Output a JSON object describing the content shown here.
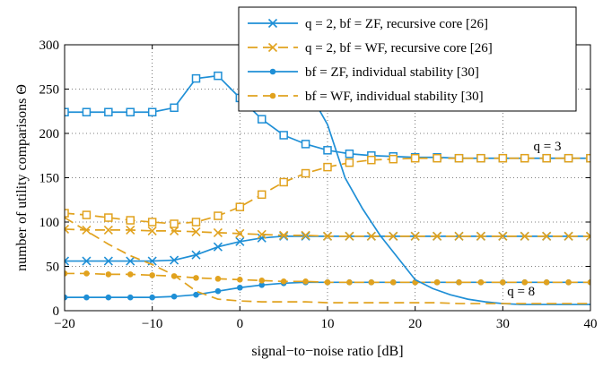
{
  "chart_data": {
    "type": "line",
    "xlabel": "signal−to−noise ratio [dB]",
    "ylabel": "number of utility comparisons Θ",
    "xlim": [
      -20,
      40
    ],
    "ylim": [
      0,
      300
    ],
    "xticks": [
      -20,
      -10,
      0,
      10,
      20,
      30,
      40
    ],
    "yticks": [
      0,
      50,
      100,
      150,
      200,
      250,
      300
    ],
    "grid": true,
    "legend_position": "top-right",
    "colors": {
      "blue": "#1f8fd6",
      "orange": "#e1a21e"
    },
    "annotations": [
      {
        "text": "q = 3",
        "x": 33.5,
        "y": 181
      },
      {
        "text": "q = 8",
        "x": 30.5,
        "y": 17
      }
    ],
    "series": [
      {
        "name": "q = 2, bf = ZF, recursive core [26]",
        "color": "blue",
        "dash": "solid",
        "marker": "x",
        "x": [
          -20,
          -17.5,
          -15,
          -12.5,
          -10,
          -7.5,
          -5,
          -2.5,
          0,
          2.5,
          5,
          7.5,
          10,
          12.5,
          15,
          17.5,
          20,
          22.5,
          25,
          27.5,
          30,
          32.5,
          35,
          37.5,
          40
        ],
        "y": [
          56,
          56,
          56,
          56,
          56,
          57,
          63,
          72,
          78,
          82,
          84,
          84,
          84,
          84,
          84,
          84,
          84,
          84,
          84,
          84,
          84,
          84,
          84,
          84,
          84
        ]
      },
      {
        "name": "q = 2, bf = WF, recursive core [26]",
        "color": "orange",
        "dash": "dashed",
        "marker": "x",
        "x": [
          -20,
          -17.5,
          -15,
          -12.5,
          -10,
          -7.5,
          -5,
          -2.5,
          0,
          2.5,
          5,
          7.5,
          10,
          12.5,
          15,
          17.5,
          20,
          22.5,
          25,
          27.5,
          30,
          32.5,
          35,
          37.5,
          40
        ],
        "y": [
          92,
          91,
          91,
          91,
          90,
          90,
          89,
          88,
          87,
          86,
          85,
          85,
          84,
          84,
          84,
          84,
          84,
          84,
          84,
          84,
          84,
          84,
          84,
          84,
          84
        ]
      },
      {
        "name": "bf = ZF, individual stability [30]",
        "color": "blue",
        "dash": "solid",
        "marker": "dot",
        "x": [
          -20,
          -17.5,
          -15,
          -12.5,
          -10,
          -7.5,
          -5,
          -2.5,
          0,
          2.5,
          5,
          7.5,
          10,
          12.5,
          15,
          17.5,
          20,
          22.5,
          25,
          27.5,
          30,
          32.5,
          35,
          37.5,
          40
        ],
        "y": [
          15,
          15,
          15,
          15,
          15,
          16,
          18,
          22,
          26,
          29,
          31,
          32,
          32,
          32,
          32,
          32,
          32,
          32,
          32,
          32,
          32,
          32,
          32,
          32,
          32
        ]
      },
      {
        "name": "bf = WF, individual stability [30]",
        "color": "orange",
        "dash": "dashed",
        "marker": "dot",
        "x": [
          -20,
          -17.5,
          -15,
          -12.5,
          -10,
          -7.5,
          -5,
          -2.5,
          0,
          2.5,
          5,
          7.5,
          10,
          12.5,
          15,
          17.5,
          20,
          22.5,
          25,
          27.5,
          30,
          32.5,
          35,
          37.5,
          40
        ],
        "y": [
          42,
          42,
          41,
          41,
          40,
          39,
          37,
          36,
          35,
          34,
          33,
          33,
          32,
          32,
          32,
          32,
          32,
          32,
          32,
          32,
          32,
          32,
          32,
          32,
          32
        ]
      },
      {
        "color": "blue",
        "dash": "solid",
        "marker": "square",
        "x": [
          -20,
          -17.5,
          -15,
          -12.5,
          -10,
          -7.5,
          -5,
          -2.5,
          0,
          2.5,
          5,
          7.5,
          10,
          12.5,
          15,
          17.5,
          20,
          22.5,
          25,
          27.5,
          30,
          32.5,
          35,
          37.5,
          40
        ],
        "y": [
          224,
          224,
          224,
          224,
          224,
          229,
          262,
          265,
          240,
          216,
          198,
          188,
          181,
          177,
          175,
          174,
          173,
          173,
          172,
          172,
          172,
          172,
          172,
          172,
          172
        ]
      },
      {
        "color": "orange",
        "dash": "dashed",
        "marker": "square",
        "x": [
          -20,
          -17.5,
          -15,
          -12.5,
          -10,
          -7.5,
          -5,
          -2.5,
          0,
          2.5,
          5,
          7.5,
          10,
          12.5,
          15,
          17.5,
          20,
          22.5,
          25,
          27.5,
          30,
          32.5,
          35,
          37.5,
          40
        ],
        "y": [
          110,
          108,
          105,
          102,
          100,
          98,
          100,
          107,
          117,
          131,
          145,
          155,
          162,
          167,
          170,
          171,
          172,
          172,
          172,
          172,
          172,
          172,
          172,
          172,
          172
        ]
      },
      {
        "color": "blue",
        "dash": "solid",
        "marker": "none",
        "x": [
          2,
          4,
          6,
          8,
          10,
          12,
          14,
          16,
          18,
          20,
          22,
          24,
          26,
          28,
          30,
          32,
          34,
          36,
          38,
          40
        ],
        "y": [
          300,
          280,
          260,
          245,
          210,
          150,
          115,
          85,
          60,
          35,
          25,
          18,
          13,
          10,
          8,
          7,
          7,
          7,
          7,
          7
        ]
      },
      {
        "color": "orange",
        "dash": "dashed",
        "marker": "none",
        "x": [
          -20,
          -17.5,
          -15,
          -12.5,
          -10,
          -7.5,
          -5,
          -2.5,
          0,
          2.5,
          5,
          7.5,
          10,
          12.5,
          15,
          17.5,
          20,
          22.5,
          25,
          27.5,
          30,
          32.5,
          35,
          37.5,
          40
        ],
        "y": [
          105,
          90,
          75,
          62,
          52,
          40,
          22,
          13,
          11,
          10,
          10,
          10,
          9,
          9,
          9,
          9,
          9,
          9,
          8,
          8,
          8,
          8,
          8,
          8,
          8
        ]
      }
    ]
  }
}
